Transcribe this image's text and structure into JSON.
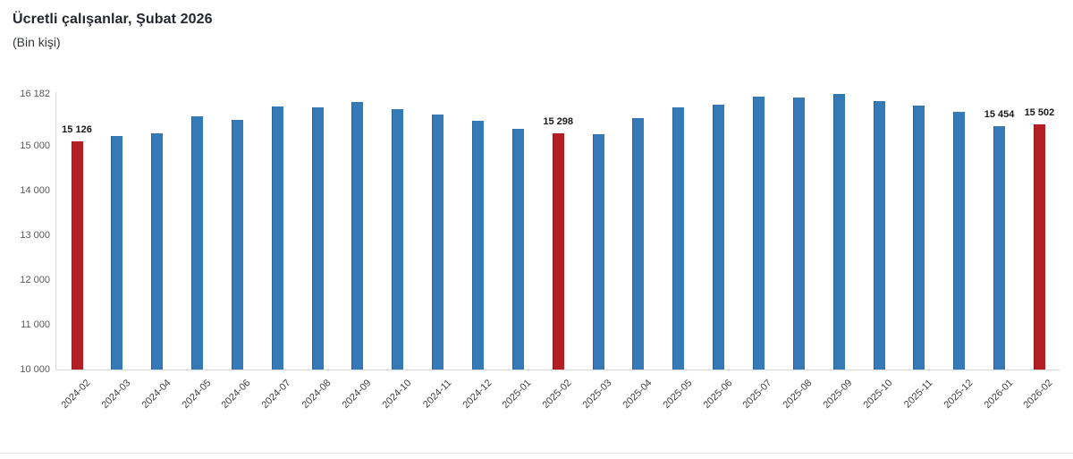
{
  "header": {
    "title": "Ücretli çalışanlar, Şubat 2026",
    "subtitle": "(Bin kişi)"
  },
  "chart_data": {
    "type": "bar",
    "title": "Ücretli çalışanlar, Şubat 2026",
    "subtitle": "(Bin kişi)",
    "ylabel": "Bin kişi",
    "xlabel": "",
    "categories": [
      "2024-02",
      "2024-03",
      "2024-04",
      "2024-05",
      "2024-06",
      "2024-07",
      "2024-08",
      "2024-09",
      "2024-10",
      "2024-11",
      "2024-12",
      "2025-01",
      "2025-02",
      "2025-03",
      "2025-04",
      "2025-05",
      "2025-06",
      "2025-07",
      "2025-08",
      "2025-09",
      "2025-10",
      "2025-11",
      "2025-12",
      "2026-01",
      "2026-02"
    ],
    "values": [
      15126,
      15230,
      15300,
      15690,
      15600,
      15900,
      15890,
      16000,
      15850,
      15730,
      15570,
      15400,
      15298,
      15280,
      15650,
      15880,
      15950,
      16120,
      16100,
      16182,
      16020,
      15920,
      15790,
      15454,
      15502
    ],
    "data_labels": {
      "2024-02": "15 126",
      "2025-02": "15 298",
      "2026-01": "15 454",
      "2026-02": "15 502"
    },
    "highlighted_categories": [
      "2024-02",
      "2025-02",
      "2026-02"
    ],
    "y_ticks": [
      {
        "value": 10000,
        "label": "10 000"
      },
      {
        "value": 11000,
        "label": "11 000"
      },
      {
        "value": 12000,
        "label": "12 000"
      },
      {
        "value": 13000,
        "label": "13 000"
      },
      {
        "value": 14000,
        "label": "14 000"
      },
      {
        "value": 15000,
        "label": "15 000"
      },
      {
        "value": 16182,
        "label": "16 182"
      }
    ],
    "ylim": [
      10000,
      16182
    ],
    "grid": false,
    "legend": false,
    "colors": {
      "bar": "#3579b6",
      "highlight": "#b41f24",
      "axis_line": "#d9d9d9",
      "tick_text": "#595959",
      "x_label_text": "#3f3f3f",
      "data_label_text": "#16181a",
      "title_text": "#23272e",
      "divider": "#e4e4e4"
    }
  }
}
